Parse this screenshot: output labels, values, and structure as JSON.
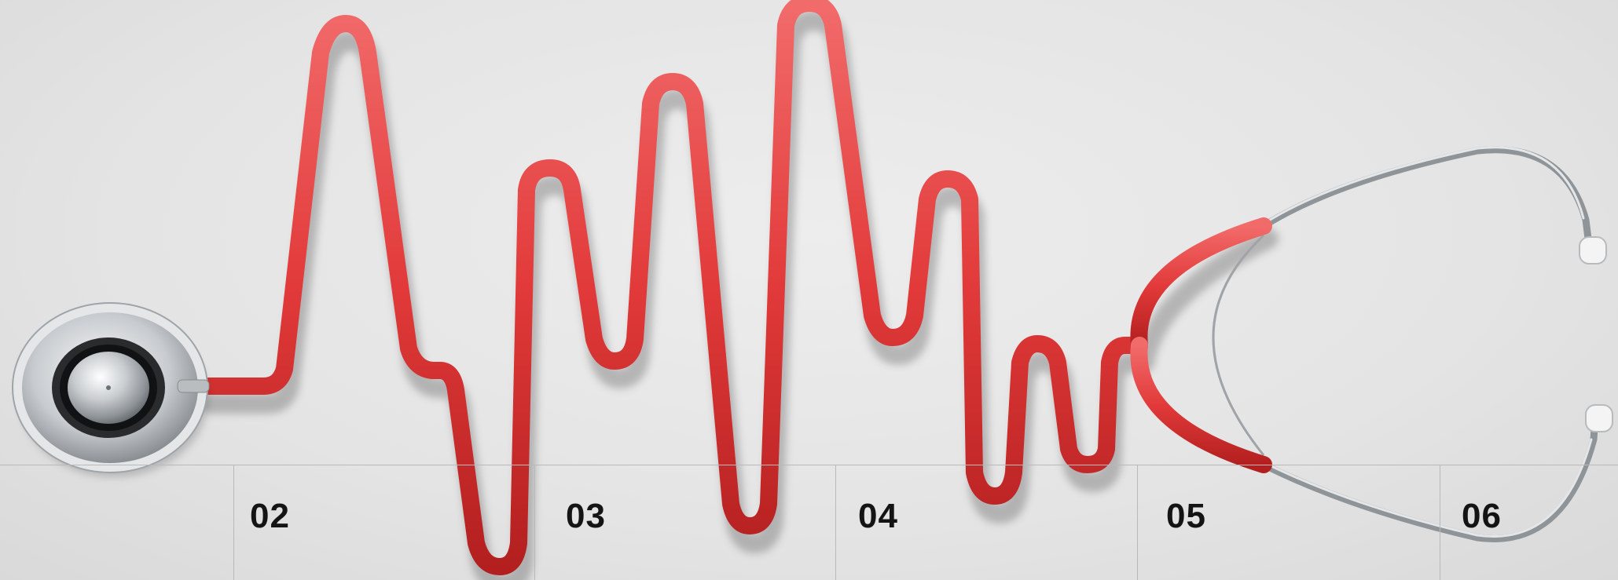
{
  "image": {
    "subject": "stethoscope",
    "tube_color": "#e23a3a",
    "metal_color": "#bfc3c6",
    "background_color": "#e6e6e6"
  },
  "sections": [
    {
      "label": "02"
    },
    {
      "label": "03"
    },
    {
      "label": "04"
    },
    {
      "label": "05"
    },
    {
      "label": "06"
    }
  ]
}
